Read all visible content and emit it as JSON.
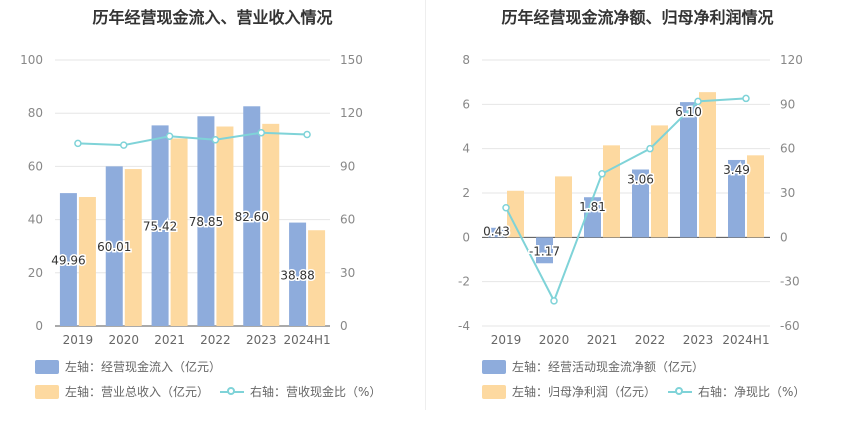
{
  "colors": {
    "bar_blue": "#8eacdc",
    "bar_orange": "#fdd9a0",
    "line": "#7fd3d8"
  },
  "chart_data": [
    {
      "type": "bar",
      "title": "历年经营现金流入、营业收入情况",
      "categories": [
        "2019",
        "2020",
        "2021",
        "2022",
        "2023",
        "2024H1"
      ],
      "left_axis": {
        "min": 0,
        "max": 100,
        "step": 20,
        "ticks": [
          "0",
          "20",
          "40",
          "60",
          "80",
          "100"
        ]
      },
      "right_axis": {
        "min": 0,
        "max": 150,
        "step": 30,
        "ticks": [
          "0",
          "30",
          "60",
          "90",
          "120",
          "150"
        ]
      },
      "series": [
        {
          "name": "左轴：经营现金流入（亿元）",
          "type": "bar",
          "axis": "left",
          "values": [
            49.96,
            60.01,
            75.42,
            78.85,
            82.6,
            38.88
          ],
          "labels": [
            "49.96",
            "60.01",
            "75.42",
            "78.85",
            "82.60",
            "38.88"
          ]
        },
        {
          "name": "左轴：营业总收入（亿元）",
          "type": "bar",
          "axis": "left",
          "values": [
            48.5,
            59.0,
            70.5,
            75.0,
            76.0,
            36.0
          ]
        },
        {
          "name": "右轴：营收现金比（%）",
          "type": "line",
          "axis": "right",
          "values": [
            103,
            102,
            107,
            105,
            109,
            108
          ]
        }
      ]
    },
    {
      "type": "bar",
      "title": "历年经营现金流净额、归母净利润情况",
      "categories": [
        "2019",
        "2020",
        "2021",
        "2022",
        "2023",
        "2024H1"
      ],
      "left_axis": {
        "min": -4,
        "max": 8,
        "step": 2,
        "ticks": [
          "-4",
          "-2",
          "0",
          "2",
          "4",
          "6",
          "8"
        ]
      },
      "right_axis": {
        "min": -60,
        "max": 120,
        "step": 30,
        "ticks": [
          "-60",
          "-30",
          "0",
          "30",
          "60",
          "90",
          "120"
        ]
      },
      "series": [
        {
          "name": "左轴：经营活动现金流净额（亿元）",
          "type": "bar",
          "axis": "left",
          "values": [
            0.43,
            -1.17,
            1.81,
            3.06,
            6.1,
            3.49
          ],
          "labels": [
            "0.43",
            "-1.17",
            "1.81",
            "3.06",
            "6.10",
            "3.49"
          ]
        },
        {
          "name": "左轴：归母净利润（亿元）",
          "type": "bar",
          "axis": "left",
          "values": [
            2.1,
            2.75,
            4.15,
            5.05,
            6.55,
            3.7
          ]
        },
        {
          "name": "右轴：净现比（%）",
          "type": "line",
          "axis": "right",
          "values": [
            20,
            -43,
            43,
            60,
            92,
            94
          ]
        }
      ]
    }
  ]
}
